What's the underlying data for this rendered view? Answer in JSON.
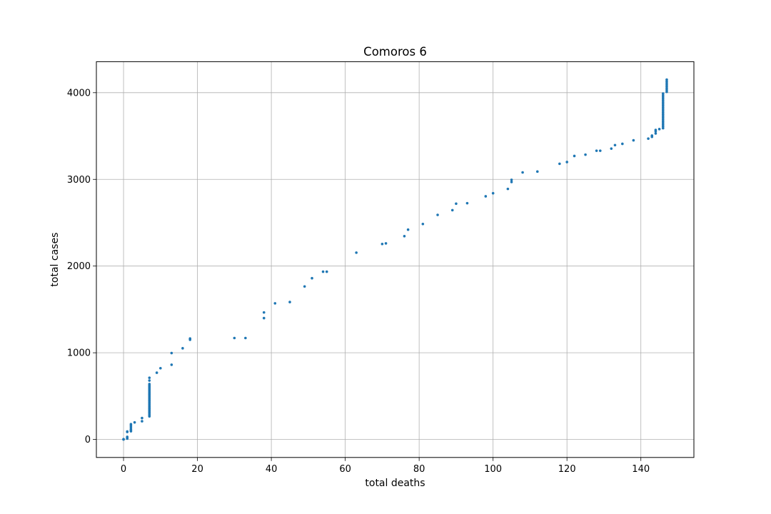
{
  "chart_data": {
    "type": "scatter",
    "title": "Comoros 6",
    "xlabel": "total deaths",
    "ylabel": "total cases",
    "xlim": [
      -7.35,
      154.35
    ],
    "ylim": [
      -207.5,
      4357.5
    ],
    "xticks": [
      0,
      20,
      40,
      60,
      80,
      100,
      120,
      140
    ],
    "yticks": [
      0,
      1000,
      2000,
      3000,
      4000
    ],
    "grid": true,
    "legend": "none",
    "marker_color": "#1f77b4",
    "points": [
      [
        0,
        0
      ],
      [
        0,
        3
      ],
      [
        1,
        10
      ],
      [
        1,
        16
      ],
      [
        1,
        24
      ],
      [
        1,
        30
      ],
      [
        1,
        87
      ],
      [
        1,
        92
      ],
      [
        2,
        95
      ],
      [
        2,
        106
      ],
      [
        2,
        120
      ],
      [
        2,
        141
      ],
      [
        2,
        159
      ],
      [
        2,
        176
      ],
      [
        3,
        197
      ],
      [
        5,
        210
      ],
      [
        5,
        247
      ],
      [
        7,
        266
      ],
      [
        7,
        280
      ],
      [
        7,
        293
      ],
      [
        7,
        309
      ],
      [
        7,
        317
      ],
      [
        7,
        328
      ],
      [
        7,
        341
      ],
      [
        7,
        354
      ],
      [
        7,
        366
      ],
      [
        7,
        379
      ],
      [
        7,
        392
      ],
      [
        7,
        405
      ],
      [
        7,
        418
      ],
      [
        7,
        431
      ],
      [
        7,
        444
      ],
      [
        7,
        457
      ],
      [
        7,
        470
      ],
      [
        7,
        483
      ],
      [
        7,
        496
      ],
      [
        7,
        509
      ],
      [
        7,
        522
      ],
      [
        7,
        535
      ],
      [
        7,
        548
      ],
      [
        7,
        561
      ],
      [
        7,
        574
      ],
      [
        7,
        587
      ],
      [
        7,
        600
      ],
      [
        7,
        613
      ],
      [
        7,
        626
      ],
      [
        7,
        640
      ],
      [
        7,
        680
      ],
      [
        7,
        712
      ],
      [
        9,
        770
      ],
      [
        10,
        822
      ],
      [
        13,
        862
      ],
      [
        13,
        997
      ],
      [
        16,
        1052
      ],
      [
        18,
        1150
      ],
      [
        18,
        1165
      ],
      [
        30,
        1170
      ],
      [
        33,
        1170
      ],
      [
        38,
        1400
      ],
      [
        38,
        1465
      ],
      [
        41,
        1570
      ],
      [
        45,
        1585
      ],
      [
        49,
        1765
      ],
      [
        51,
        1860
      ],
      [
        54,
        1935
      ],
      [
        55,
        1935
      ],
      [
        63,
        2155
      ],
      [
        70,
        2255
      ],
      [
        71,
        2262
      ],
      [
        76,
        2345
      ],
      [
        77,
        2420
      ],
      [
        81,
        2485
      ],
      [
        85,
        2590
      ],
      [
        89,
        2645
      ],
      [
        90,
        2720
      ],
      [
        93,
        2725
      ],
      [
        98,
        2805
      ],
      [
        100,
        2840
      ],
      [
        104,
        2890
      ],
      [
        105,
        2970
      ],
      [
        105,
        2995
      ],
      [
        108,
        3080
      ],
      [
        112,
        3090
      ],
      [
        118,
        3180
      ],
      [
        120,
        3200
      ],
      [
        122,
        3270
      ],
      [
        125,
        3285
      ],
      [
        128,
        3330
      ],
      [
        129,
        3330
      ],
      [
        132,
        3355
      ],
      [
        133,
        3395
      ],
      [
        135,
        3410
      ],
      [
        138,
        3450
      ],
      [
        142,
        3470
      ],
      [
        143,
        3490
      ],
      [
        143,
        3505
      ],
      [
        144,
        3530
      ],
      [
        144,
        3555
      ],
      [
        144,
        3570
      ],
      [
        145,
        3580
      ],
      [
        146,
        3590
      ],
      [
        146,
        3610
      ],
      [
        146,
        3630
      ],
      [
        146,
        3650
      ],
      [
        146,
        3670
      ],
      [
        146,
        3690
      ],
      [
        146,
        3710
      ],
      [
        146,
        3730
      ],
      [
        146,
        3750
      ],
      [
        146,
        3770
      ],
      [
        146,
        3790
      ],
      [
        146,
        3810
      ],
      [
        146,
        3830
      ],
      [
        146,
        3850
      ],
      [
        146,
        3870
      ],
      [
        146,
        3890
      ],
      [
        146,
        3910
      ],
      [
        146,
        3930
      ],
      [
        146,
        3950
      ],
      [
        146,
        3970
      ],
      [
        146,
        3990
      ],
      [
        147,
        4010
      ],
      [
        147,
        4030
      ],
      [
        147,
        4050
      ],
      [
        147,
        4070
      ],
      [
        147,
        4090
      ],
      [
        147,
        4110
      ],
      [
        147,
        4130
      ],
      [
        147,
        4150
      ]
    ]
  }
}
